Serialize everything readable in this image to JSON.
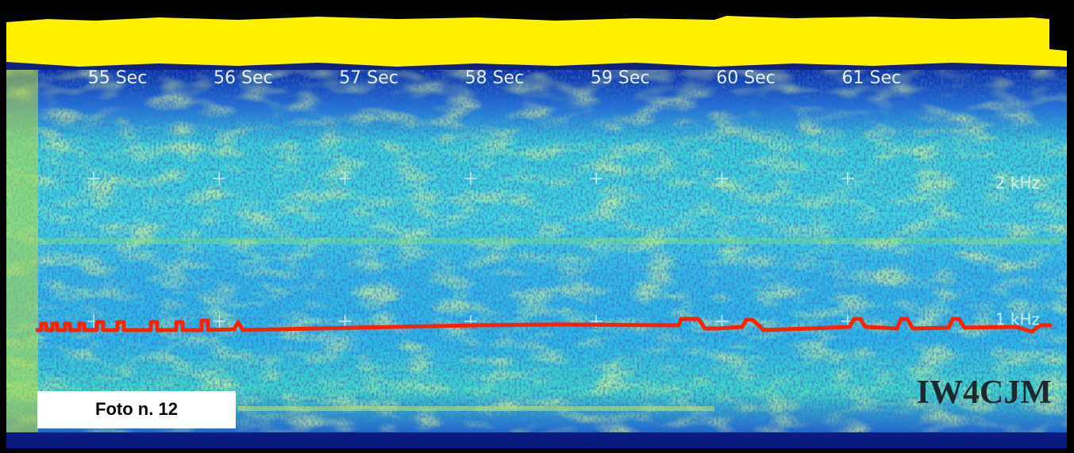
{
  "time_labels": [
    "55 Sec",
    "56 Sec",
    "57 Sec",
    "58 Sec",
    "59 Sec",
    "60 Sec",
    "61 Sec"
  ],
  "frequency_labels": [
    "2 kHz",
    "1 kHz"
  ],
  "callsign": "IW4CJM",
  "caption": "Foto n. 12"
}
